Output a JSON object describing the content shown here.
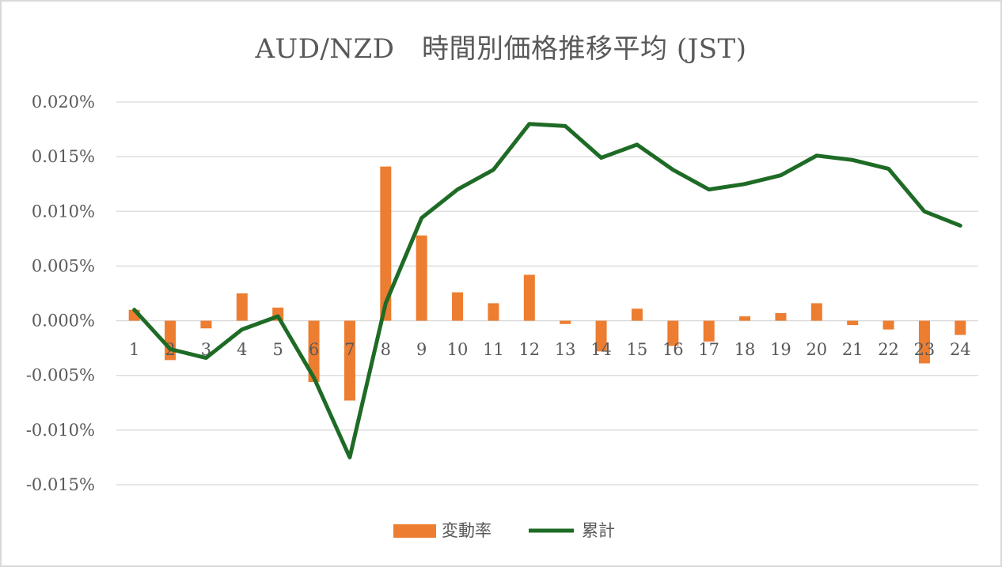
{
  "chart_data": {
    "type": "bar+line",
    "title": "AUD/NZD　時間別価格推移平均 (JST)",
    "categories": [
      "1",
      "2",
      "3",
      "4",
      "5",
      "6",
      "7",
      "8",
      "9",
      "10",
      "11",
      "12",
      "13",
      "14",
      "15",
      "16",
      "17",
      "18",
      "19",
      "20",
      "21",
      "22",
      "23",
      "24"
    ],
    "series": [
      {
        "name": "変動率",
        "type": "bar",
        "color": "#ED7D31",
        "values": [
          0.001,
          -0.0036,
          -0.0007,
          0.0025,
          0.0012,
          -0.0056,
          -0.0073,
          0.0141,
          0.0078,
          0.0026,
          0.0016,
          0.0042,
          -0.0003,
          -0.0028,
          0.0011,
          -0.0023,
          -0.0019,
          0.0004,
          0.0007,
          0.0016,
          -0.0004,
          -0.0008,
          -0.0039,
          -0.0013
        ]
      },
      {
        "name": "累計",
        "type": "line",
        "color": "#1E6B26",
        "values": [
          0.001,
          -0.0026,
          -0.0034,
          -0.0008,
          0.0004,
          -0.0052,
          -0.0125,
          0.0016,
          0.0094,
          0.012,
          0.0138,
          0.018,
          0.0178,
          0.0149,
          0.0161,
          0.0138,
          0.012,
          0.0125,
          0.0133,
          0.0151,
          0.0147,
          0.0139,
          0.01,
          0.0087
        ]
      }
    ],
    "yticks": [
      "0.020%",
      "0.015%",
      "0.010%",
      "0.005%",
      "0.000%",
      "-0.005%",
      "-0.010%",
      "-0.015%"
    ],
    "ylim": [
      -0.015,
      0.02
    ],
    "ystep": 0.005,
    "grid": true,
    "legend": "bottom",
    "gridcolor": "#d9d9d9"
  }
}
